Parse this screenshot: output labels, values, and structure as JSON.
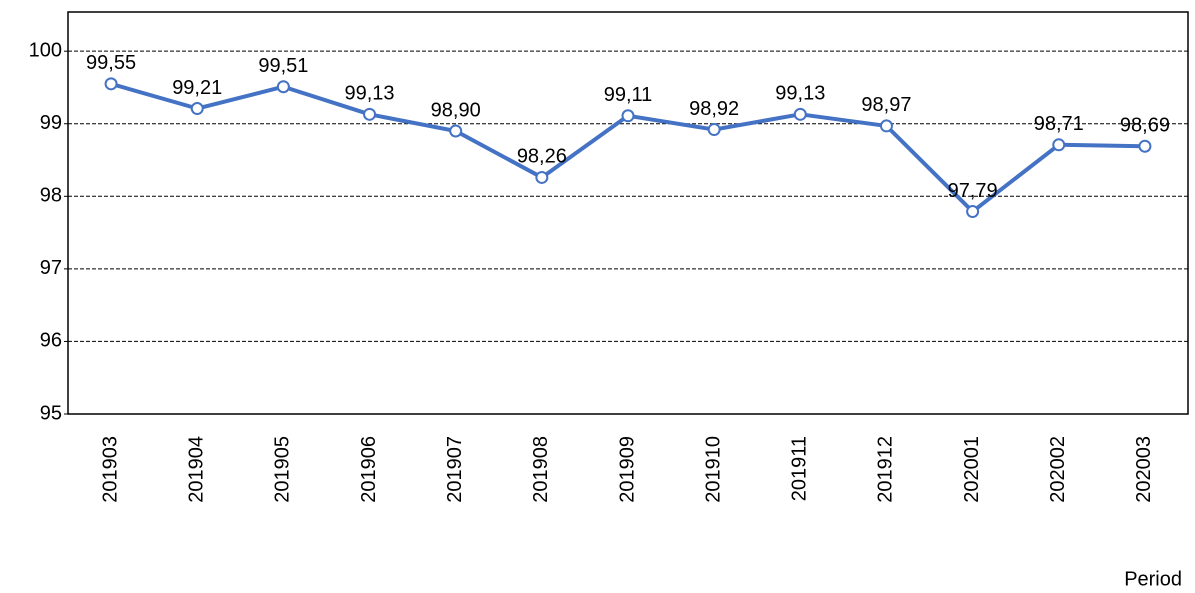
{
  "chart_data": {
    "type": "line",
    "x_label": "Period",
    "categories": [
      "201903",
      "201904",
      "201905",
      "201906",
      "201907",
      "201908",
      "201909",
      "201910",
      "201911",
      "201912",
      "202001",
      "202002",
      "202003"
    ],
    "series": [
      {
        "color": "#4472c4",
        "values": [
          99.55,
          99.21,
          99.51,
          99.13,
          98.9,
          98.26,
          99.11,
          98.92,
          99.13,
          98.97,
          97.79,
          98.71,
          98.69
        ],
        "value_labels": [
          "99,55",
          "99,21",
          "99,51",
          "99,13",
          "98,90",
          "98,26",
          "99,11",
          "98,92",
          "99,13",
          "98,97",
          "97,79",
          "98,71",
          "98,69"
        ]
      }
    ],
    "ylim": [
      95,
      100.54
    ],
    "yticks": [
      95,
      96,
      97,
      98,
      99,
      100
    ],
    "grid": true
  }
}
